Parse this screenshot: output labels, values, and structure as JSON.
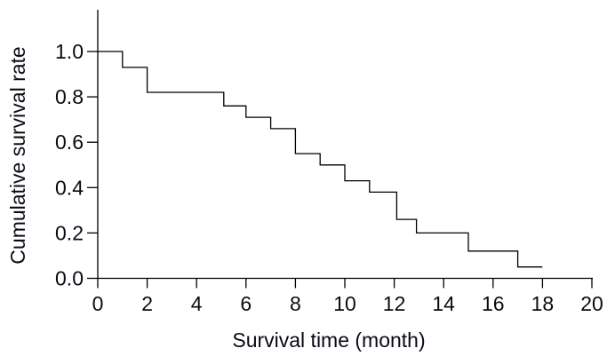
{
  "figure": {
    "background_color": "#ffffff",
    "line_color": "#000000",
    "text_color": "#0a0a14"
  },
  "chart_data": {
    "type": "line",
    "line_style": "step-post",
    "title": "",
    "xlabel": "Survival time (month)",
    "ylabel": "Cumulative survival rate",
    "xlim": [
      0,
      20
    ],
    "ylim": [
      0.0,
      1.0
    ],
    "x_ticks": [
      "0",
      "2",
      "4",
      "6",
      "8",
      "10",
      "12",
      "14",
      "16",
      "18",
      "20"
    ],
    "y_ticks": [
      "0.0",
      "0.2",
      "0.4",
      "0.6",
      "0.8",
      "1.0"
    ],
    "grid": false,
    "legend_position": "none",
    "series": [
      {
        "name": "cumulative-survival-rate",
        "color": "#000000",
        "step_times": [
          0,
          1,
          2,
          5.1,
          6,
          7,
          8,
          9,
          10,
          11,
          12.1,
          12.9,
          15,
          17
        ],
        "step_values": [
          1.0,
          0.93,
          0.82,
          0.76,
          0.71,
          0.66,
          0.55,
          0.5,
          0.43,
          0.38,
          0.26,
          0.2,
          0.12,
          0.05
        ],
        "end_time": 18,
        "end_value": 0.05
      }
    ]
  }
}
